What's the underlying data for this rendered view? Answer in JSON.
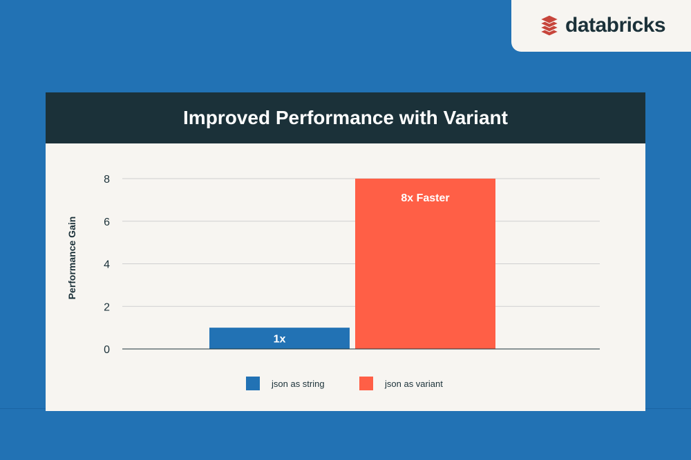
{
  "brand": {
    "name": "databricks",
    "logo_color": "#c7453b",
    "text_color": "#1b3139"
  },
  "colors": {
    "background": "#2272b4",
    "header": "#1b3139",
    "card": "#f7f5f1",
    "series_string": "#2272b4",
    "series_variant": "#ff5f46"
  },
  "chart_data": {
    "type": "bar",
    "title": "Improved Performance with Variant",
    "xlabel": "",
    "ylabel": "Performance Gain",
    "ylim": [
      0,
      8
    ],
    "yticks": [
      "0",
      "2",
      "4",
      "6",
      "8"
    ],
    "grid": true,
    "legend": "bottom",
    "series": [
      {
        "name": "json as string",
        "value": 1,
        "label": "1x",
        "color": "#2272b4"
      },
      {
        "name": "json as variant",
        "value": 8,
        "label": "8x Faster",
        "color": "#ff5f46"
      }
    ]
  }
}
